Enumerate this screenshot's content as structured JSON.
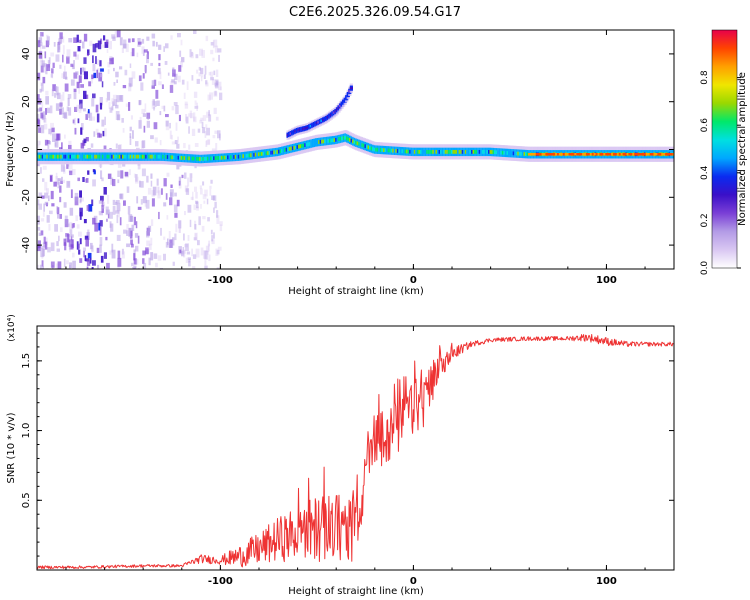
{
  "title": "C2E6.2025.326.09.54.G17",
  "colors": {
    "snr_line": "#ee3333",
    "colormap": [
      "#ffffff",
      "#d9c7f2",
      "#b39be6",
      "#7a3fd6",
      "#3a10c8",
      "#0a2bf0",
      "#00a8ff",
      "#00e0e0",
      "#00e86a",
      "#9ad800",
      "#f0e600",
      "#ffa000",
      "#ff4400",
      "#e8004a"
    ]
  },
  "chart_data": [
    {
      "type": "heatmap",
      "name": "spectrogram",
      "xlabel": "Height of straight line (km)",
      "ylabel": "Frequency (Hz)",
      "xlim": [
        -195,
        135
      ],
      "ylim": [
        -50,
        50
      ],
      "xticks": [
        -100,
        0,
        100
      ],
      "yticks": [
        -40,
        -20,
        0,
        20,
        40
      ],
      "xtick_labels": [
        "-100",
        "0",
        "100"
      ],
      "ytick_labels": [
        "-40",
        "-20",
        "0",
        "20",
        "40"
      ],
      "colorbar": {
        "label": "Normalized spectral amplitude",
        "range": [
          0,
          1
        ],
        "ticks": [
          0.0,
          0.2,
          0.4,
          0.6,
          0.8
        ],
        "tick_labels": [
          "0.0",
          "0.2",
          "0.4",
          "0.6",
          "0.8"
        ]
      },
      "main_trace": {
        "x": [
          -195,
          -160,
          -130,
          -110,
          -90,
          -70,
          -60,
          -50,
          -40,
          -35,
          -30,
          -20,
          0,
          20,
          40,
          60,
          80,
          100,
          120,
          135
        ],
        "freq": [
          -3,
          -3,
          -3,
          -4,
          -3,
          -1,
          1,
          3,
          4,
          5,
          3,
          0,
          -1,
          -1,
          -1,
          -2,
          -2,
          -2,
          -2,
          -2
        ]
      },
      "secondary_trace": {
        "x": [
          -65,
          -60,
          -55,
          -50,
          -45,
          -40,
          -35,
          -32
        ],
        "freq": [
          6,
          8,
          9,
          11,
          13,
          16,
          21,
          26
        ]
      },
      "noise_region": [
        -195,
        -120
      ]
    },
    {
      "type": "line",
      "name": "snr",
      "xlabel": "Height of straight line (km)",
      "ylabel": "SNR (10 * v/v)",
      "multiplier": "(x10⁴)",
      "xlim": [
        -195,
        135
      ],
      "ylim": [
        0,
        1.75
      ],
      "xticks": [
        -100,
        0,
        100
      ],
      "yticks": [
        0.5,
        1.0,
        1.5
      ],
      "xtick_labels": [
        "-100",
        "0",
        "100"
      ],
      "ytick_labels": [
        "0.5",
        "1.0",
        "1.5"
      ],
      "series": [
        {
          "name": "SNR",
          "x": [
            -195,
            -170,
            -140,
            -120,
            -110,
            -100,
            -90,
            -80,
            -70,
            -60,
            -50,
            -40,
            -30,
            -27,
            -25,
            -20,
            -15,
            -10,
            -5,
            0,
            5,
            10,
            15,
            20,
            30,
            40,
            60,
            80,
            90,
            100,
            110,
            120,
            135
          ],
          "values": [
            0.02,
            0.02,
            0.03,
            0.03,
            0.08,
            0.07,
            0.1,
            0.15,
            0.22,
            0.26,
            0.3,
            0.3,
            0.32,
            0.3,
            0.75,
            0.9,
            0.95,
            1.0,
            1.05,
            1.15,
            1.2,
            1.3,
            1.45,
            1.55,
            1.62,
            1.65,
            1.66,
            1.66,
            1.67,
            1.64,
            1.62,
            1.62,
            1.62
          ],
          "amp": [
            0.01,
            0.01,
            0.01,
            0.01,
            0.03,
            0.03,
            0.08,
            0.12,
            0.16,
            0.2,
            0.24,
            0.25,
            0.28,
            0.1,
            0.2,
            0.22,
            0.22,
            0.2,
            0.2,
            0.2,
            0.18,
            0.15,
            0.1,
            0.05,
            0.02,
            0.015,
            0.015,
            0.015,
            0.03,
            0.03,
            0.02,
            0.015,
            0.015
          ]
        }
      ]
    }
  ]
}
